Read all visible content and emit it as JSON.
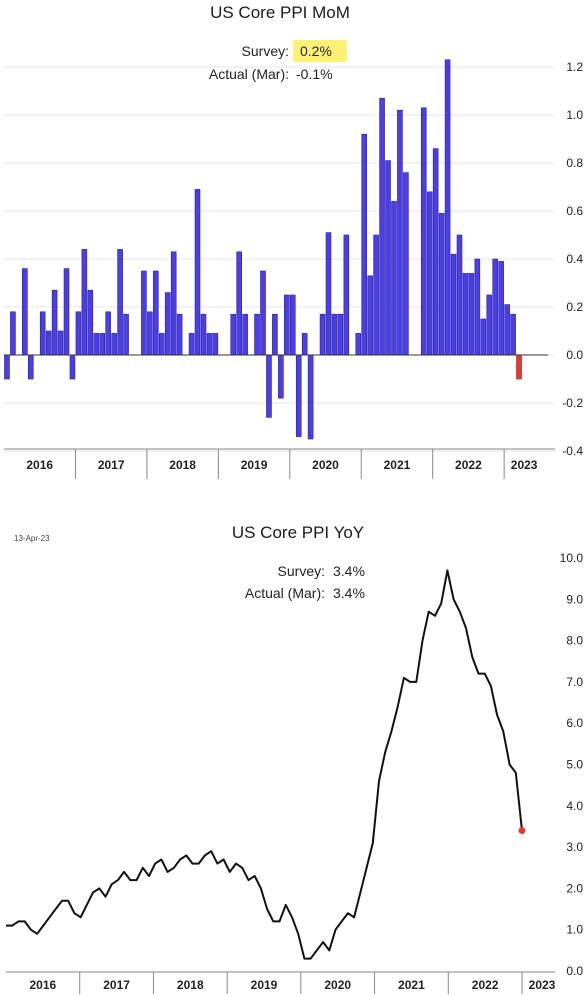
{
  "charts": [
    {
      "title": "US Core PPI MoM",
      "survey_label": "Survey:",
      "survey_value": "0.2%",
      "actual_label": "Actual (Mar):",
      "actual_value": "-0.1%",
      "highlight_color": "#fff176"
    },
    {
      "title": "US  Core PPI YoY",
      "date": "13-Apr-23",
      "survey_label": "Survey:",
      "survey_value": "3.4%",
      "actual_label": "Actual (Mar):",
      "actual_value": "3.4%"
    }
  ],
  "chart_data": [
    {
      "type": "bar",
      "title": "US Core PPI MoM",
      "x_tick_labels": [
        "2016",
        "2017",
        "2018",
        "2019",
        "2020",
        "2021",
        "2022",
        "2023"
      ],
      "y_ticks": [
        -0.4,
        -0.2,
        0.0,
        0.2,
        0.4,
        0.6,
        0.8,
        1.0,
        1.2
      ],
      "ylim": [
        -0.4,
        1.25
      ],
      "grid": true,
      "bar_color": "#4a3ee6",
      "last_bar_color": "#e53935",
      "values": [
        -0.1,
        0.18,
        0.0,
        0.36,
        -0.1,
        0.0,
        0.18,
        0.1,
        0.27,
        0.1,
        0.36,
        -0.1,
        0.18,
        0.44,
        0.27,
        0.09,
        0.09,
        0.18,
        0.09,
        0.44,
        0.17,
        0.0,
        0.0,
        0.35,
        0.18,
        0.35,
        0.09,
        0.26,
        0.43,
        0.17,
        0.0,
        0.09,
        0.69,
        0.17,
        0.09,
        0.09,
        0.0,
        0.0,
        0.17,
        0.43,
        0.17,
        0.0,
        0.17,
        0.35,
        -0.26,
        0.17,
        -0.18,
        0.25,
        0.25,
        -0.34,
        0.09,
        -0.35,
        0.0,
        0.17,
        0.51,
        0.17,
        0.17,
        0.5,
        0.0,
        0.09,
        0.92,
        0.33,
        0.5,
        1.07,
        0.81,
        0.64,
        1.02,
        0.76,
        0.0,
        0.0,
        1.03,
        0.68,
        0.86,
        0.59,
        1.23,
        0.42,
        0.5,
        0.34,
        0.34,
        0.4,
        0.15,
        0.25,
        0.4,
        0.39,
        0.21,
        0.17,
        -0.1
      ]
    },
    {
      "type": "line",
      "title": "US  Core PPI YoY",
      "x_tick_labels": [
        "2016",
        "2017",
        "2018",
        "2019",
        "2020",
        "2021",
        "2022",
        "2023"
      ],
      "y_ticks": [
        0.0,
        1.0,
        2.0,
        3.0,
        4.0,
        5.0,
        6.0,
        7.0,
        8.0,
        9.0,
        10.0
      ],
      "ylim": [
        0,
        10
      ],
      "grid": false,
      "line_color": "#111111",
      "last_point_color": "#e53935",
      "values": [
        1.1,
        1.1,
        1.2,
        1.2,
        1.0,
        0.9,
        1.1,
        1.3,
        1.5,
        1.7,
        1.7,
        1.4,
        1.3,
        1.6,
        1.9,
        2.0,
        1.8,
        2.1,
        2.2,
        2.4,
        2.2,
        2.2,
        2.5,
        2.3,
        2.6,
        2.7,
        2.4,
        2.5,
        2.7,
        2.8,
        2.6,
        2.6,
        2.8,
        2.9,
        2.6,
        2.7,
        2.4,
        2.6,
        2.5,
        2.2,
        2.3,
        2.0,
        1.5,
        1.2,
        1.2,
        1.6,
        1.3,
        0.9,
        0.3,
        0.3,
        0.5,
        0.7,
        0.5,
        1.0,
        1.2,
        1.4,
        1.3,
        1.9,
        2.5,
        3.1,
        4.6,
        5.3,
        5.8,
        6.4,
        7.1,
        7.0,
        7.0,
        8.0,
        8.7,
        8.6,
        8.9,
        9.7,
        9.0,
        8.7,
        8.3,
        7.6,
        7.2,
        7.2,
        6.9,
        6.2,
        5.8,
        5.0,
        4.8,
        3.4
      ]
    }
  ]
}
